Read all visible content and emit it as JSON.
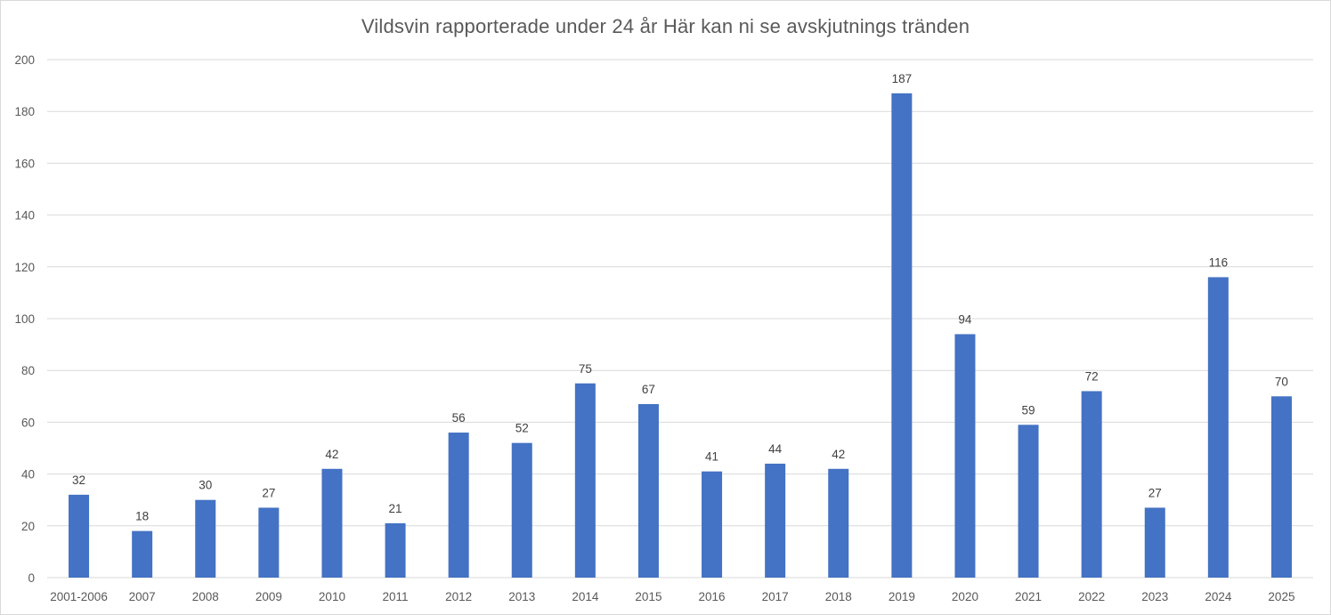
{
  "chart_data": {
    "type": "bar",
    "title": "Vildsvin rapporterade under 24 år Här kan ni se avskjutnings tränden",
    "xlabel": "",
    "ylabel": "",
    "categories": [
      "2001-2006",
      "2007",
      "2008",
      "2009",
      "2010",
      "2011",
      "2012",
      "2013",
      "2014",
      "2015",
      "2016",
      "2017",
      "2018",
      "2019",
      "2020",
      "2021",
      "2022",
      "2023",
      "2024",
      "2025"
    ],
    "values": [
      32,
      18,
      30,
      27,
      42,
      21,
      56,
      52,
      75,
      67,
      41,
      44,
      42,
      187,
      94,
      59,
      72,
      27,
      116,
      70
    ],
    "ylim": [
      0,
      200
    ],
    "yticks": [
      "0",
      "20",
      "40",
      "60",
      "80",
      "100",
      "120",
      "140",
      "160",
      "180",
      "200"
    ],
    "grid": "horizontal",
    "legend": "none",
    "data_labels": true,
    "colors": {
      "bar": "#4472c4",
      "grid": "#d9d9d9",
      "text": "#595959"
    }
  }
}
